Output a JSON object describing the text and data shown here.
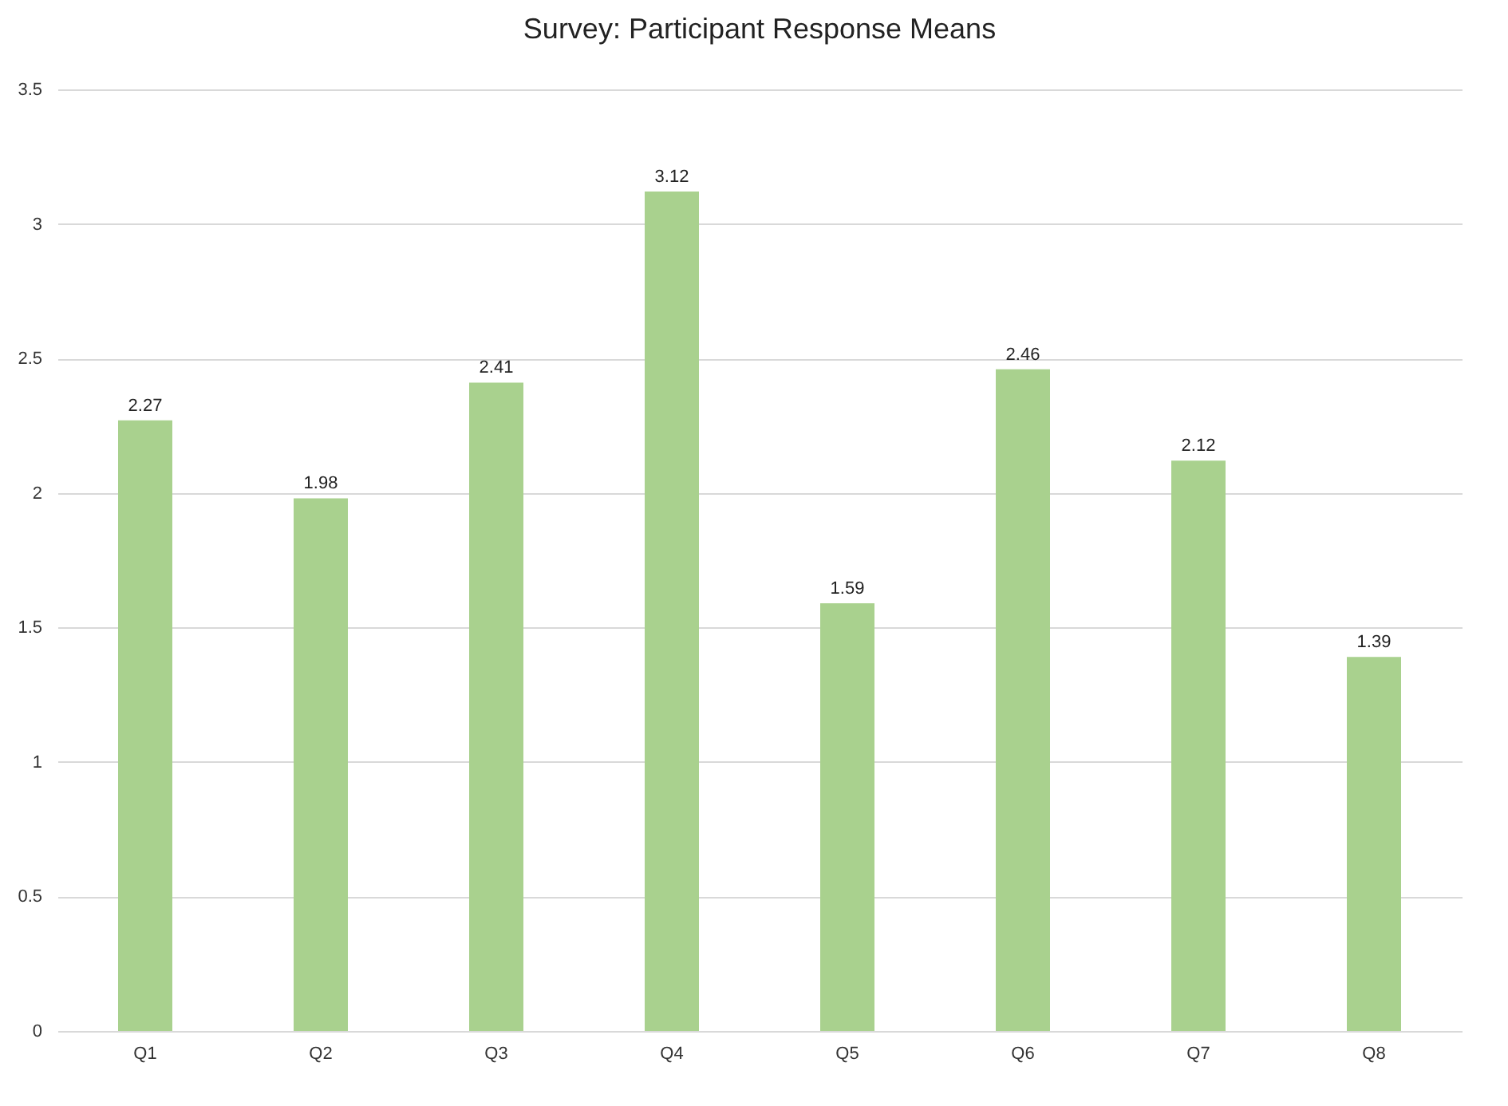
{
  "chart_data": {
    "type": "bar",
    "title": "Survey: Participant Response Means",
    "categories": [
      "Q1",
      "Q2",
      "Q3",
      "Q4",
      "Q5",
      "Q6",
      "Q7",
      "Q8"
    ],
    "values": [
      2.27,
      1.98,
      2.41,
      3.12,
      1.59,
      2.46,
      2.12,
      1.39
    ],
    "color": "#a9d18e",
    "ylim": [
      0,
      3.5
    ],
    "yticks": [
      0,
      0.5,
      1,
      1.5,
      2,
      2.5,
      3,
      3.5
    ],
    "grid": "y",
    "data_labels": true
  }
}
